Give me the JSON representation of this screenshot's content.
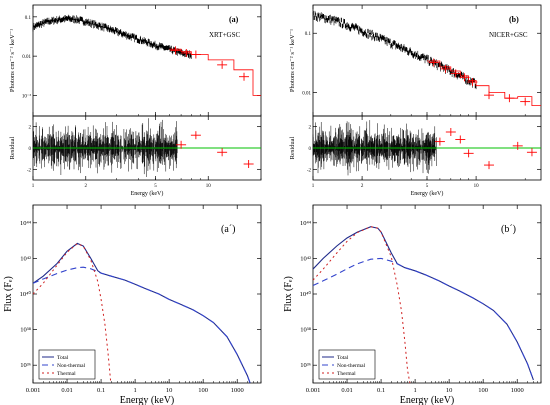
{
  "chart_data": [
    {
      "id": "a",
      "type": "line",
      "panel_label": "(a)",
      "instrument_label": "XRT+GSC",
      "log_x": true,
      "log_y": true,
      "xlim": [
        1,
        20
      ],
      "ylim": [
        0.0003,
        0.2
      ],
      "ylabel": "Photons cm⁻² s⁻¹ keV⁻¹",
      "xticks": [
        {
          "v": 1,
          "label": "1"
        },
        {
          "v": 2,
          "label": "2"
        },
        {
          "v": 5,
          "label": "5"
        },
        {
          "v": 10,
          "label": "10"
        }
      ],
      "yticks": [
        {
          "v": 0.1,
          "label": "0.1"
        },
        {
          "v": 0.01,
          "label": "0.01"
        },
        {
          "v": 0.001,
          "label": "10⁻³"
        }
      ],
      "series": [
        {
          "kind": "data",
          "color": "#000000",
          "x": [
            1.0,
            1.2,
            1.4,
            1.6,
            1.8,
            2.0,
            2.5,
            3.0,
            3.5,
            4.0,
            5.0,
            6.0,
            7.0,
            8.0
          ],
          "y": [
            0.055,
            0.075,
            0.085,
            0.09,
            0.085,
            0.075,
            0.056,
            0.042,
            0.033,
            0.027,
            0.019,
            0.015,
            0.012,
            0.011
          ]
        },
        {
          "kind": "data_extra",
          "color": "#ff0000",
          "x": [
            6.5,
            7.5,
            8.5,
            12,
            16
          ],
          "y": [
            0.014,
            0.012,
            0.011,
            0.006,
            0.003
          ]
        },
        {
          "kind": "model_step",
          "color": "#ff0000",
          "x": [
            6,
            7,
            8,
            10,
            14,
            18,
            20
          ],
          "y": [
            0.015,
            0.013,
            0.011,
            0.008,
            0.0045,
            0.001,
            0.0003
          ]
        }
      ]
    },
    {
      "id": "b",
      "type": "line",
      "panel_label": "(b)",
      "instrument_label": "NICER+GSC",
      "log_x": true,
      "log_y": true,
      "xlim": [
        1,
        25
      ],
      "ylim": [
        0.004,
        0.3
      ],
      "ylabel": "Photons cm⁻² s⁻¹ keV⁻¹",
      "xticks": [
        {
          "v": 1,
          "label": "1"
        },
        {
          "v": 2,
          "label": "2"
        },
        {
          "v": 5,
          "label": "5"
        },
        {
          "v": 10,
          "label": "10"
        }
      ],
      "yticks": [
        {
          "v": 0.1,
          "label": "0.1"
        },
        {
          "v": 0.01,
          "label": "0.01"
        }
      ],
      "series": [
        {
          "kind": "data",
          "color": "#000000",
          "x": [
            1.0,
            1.2,
            1.5,
            2.0,
            2.5,
            3.0,
            4.0,
            5.0,
            6.0,
            7.0,
            8.0,
            9.0,
            10.0
          ],
          "y": [
            0.2,
            0.18,
            0.15,
            0.11,
            0.085,
            0.068,
            0.048,
            0.036,
            0.028,
            0.023,
            0.019,
            0.016,
            0.014
          ]
        },
        {
          "kind": "data_extra",
          "color": "#ff0000",
          "x": [
            5.5,
            6.5,
            7.5,
            8.5,
            9.5,
            12,
            16,
            20
          ],
          "y": [
            0.032,
            0.025,
            0.021,
            0.018,
            0.015,
            0.009,
            0.008,
            0.007
          ]
        },
        {
          "kind": "model_step",
          "color": "#ff0000",
          "x": [
            5,
            6,
            7,
            8,
            9,
            10,
            12,
            15,
            18,
            22,
            25
          ],
          "y": [
            0.034,
            0.027,
            0.023,
            0.019,
            0.016,
            0.013,
            0.01,
            0.008,
            0.0085,
            0.006,
            0.005
          ]
        }
      ]
    },
    {
      "id": "a-residual",
      "type": "line",
      "log_x": true,
      "xlim": [
        1,
        20
      ],
      "ylim": [
        -3,
        3
      ],
      "ylabel": "Residual",
      "xlabel": "Energy (keV)",
      "xticks": [
        {
          "v": 1,
          "label": "1"
        },
        {
          "v": 2,
          "label": "2"
        },
        {
          "v": 5,
          "label": "5"
        },
        {
          "v": 10,
          "label": "10"
        }
      ],
      "yticks": [
        {
          "v": 2,
          "label": "2"
        },
        {
          "v": 0,
          "label": "0"
        },
        {
          "v": -2,
          "label": "-2"
        }
      ],
      "zero_line_color": "#00c000",
      "extra_points": {
        "color": "#ff0000",
        "x": [
          7,
          8.5,
          12,
          17
        ],
        "y": [
          0.3,
          1.2,
          -0.4,
          -1.5
        ]
      }
    },
    {
      "id": "b-residual",
      "type": "line",
      "log_x": true,
      "xlim": [
        1,
        25
      ],
      "ylim": [
        -3,
        3
      ],
      "ylabel": "Residual",
      "xlabel": "Energy (keV)",
      "xticks": [
        {
          "v": 1,
          "label": "1"
        },
        {
          "v": 2,
          "label": "2"
        },
        {
          "v": 5,
          "label": "5"
        },
        {
          "v": 10,
          "label": "10"
        }
      ],
      "yticks": [
        {
          "v": 2,
          "label": "2"
        },
        {
          "v": 0,
          "label": "0"
        },
        {
          "v": -2,
          "label": "-2"
        }
      ],
      "zero_line_color": "#00c000",
      "extra_points": {
        "color": "#ff0000",
        "x": [
          6,
          7,
          8,
          9,
          12,
          18,
          22
        ],
        "y": [
          0.6,
          1.5,
          0.8,
          -0.5,
          -1.6,
          0.2,
          -0.4
        ]
      }
    },
    {
      "id": "a-prime",
      "type": "line",
      "panel_label": "(a´)",
      "log_x": true,
      "log_y": true,
      "xlim": [
        0.001,
        5000
      ],
      "ylim": [
        1e+35,
        1e+45
      ],
      "xlabel": "Energy (keV)",
      "ylabel": "Flux (Fₑ)",
      "xticks": [
        {
          "v": 0.001,
          "label": "0.001"
        },
        {
          "v": 0.01,
          "label": "0.01"
        },
        {
          "v": 0.1,
          "label": "0.1"
        },
        {
          "v": 1,
          "label": "1"
        },
        {
          "v": 10,
          "label": "10"
        },
        {
          "v": 100,
          "label": "100"
        },
        {
          "v": 1000,
          "label": "1000"
        }
      ],
      "yticks": [
        {
          "v": 1e+36,
          "label": "10³⁶"
        },
        {
          "v": 1e+38,
          "label": "10³⁸"
        },
        {
          "v": 1e+40,
          "label": "10⁴⁰"
        },
        {
          "v": 1e+42,
          "label": "10⁴²"
        },
        {
          "v": 1e+44,
          "label": "10⁴⁴"
        }
      ],
      "legend": [
        "Total",
        "Non-thermal",
        "Thermal"
      ],
      "legend_position": "bottom-left",
      "series": [
        {
          "name": "Total",
          "color": "#1f2a8a",
          "dash": "",
          "x": [
            0.001,
            0.002,
            0.005,
            0.01,
            0.02,
            0.03,
            0.05,
            0.08,
            0.1,
            0.2,
            0.5,
            1,
            2,
            5,
            10,
            20,
            50,
            100,
            200,
            500,
            1000,
            2000,
            3000
          ],
          "y": [
            4e+40,
            1e+41,
            5e+41,
            2.5e+42,
            7e+42,
            5e+42,
            1e+42,
            2e+41,
            1.5e+41,
            1e+41,
            6e+40,
            3.5e+40,
            2e+40,
            1e+40,
            5e+39,
            2.8e+39,
            1.3e+39,
            6e+38,
            2.5e+38,
            4e+37,
            4e+36,
            2.5e+35,
            3e+34
          ]
        },
        {
          "name": "Non-thermal",
          "color": "#3344cc",
          "dash": "6,4",
          "x": [
            0.001,
            0.002,
            0.005,
            0.01,
            0.02,
            0.03,
            0.05,
            0.08,
            0.1,
            0.2,
            0.5,
            1,
            2,
            5,
            10,
            20,
            50,
            100,
            200,
            500,
            1000,
            2000,
            3000
          ],
          "y": [
            4e+40,
            7e+40,
            1.4e+41,
            2.2e+41,
            3e+41,
            3.2e+41,
            2.6e+41,
            1.8e+41,
            1.5e+41,
            1e+41,
            6e+40,
            3.5e+40,
            2e+40,
            1e+40,
            5e+39,
            2.8e+39,
            1.3e+39,
            6e+38,
            2.5e+38,
            4e+37,
            4e+36,
            2.5e+35,
            3e+34
          ]
        },
        {
          "name": "Thermal",
          "color": "#d02020",
          "dash": "2,3",
          "x": [
            0.001,
            0.002,
            0.005,
            0.01,
            0.02,
            0.03,
            0.05,
            0.08,
            0.1,
            0.13,
            0.16,
            0.2
          ],
          "y": [
            1e+40,
            4e+40,
            4e+41,
            2.2e+42,
            6.8e+42,
            4.8e+42,
            8e+41,
            5e+40,
            5e+39,
            2e+38,
            5e+36,
            5e+34
          ]
        }
      ]
    },
    {
      "id": "b-prime",
      "type": "line",
      "panel_label": "(b´)",
      "log_x": true,
      "log_y": true,
      "xlim": [
        0.001,
        5000
      ],
      "ylim": [
        1e+35,
        1e+45
      ],
      "xlabel": "Energy (keV)",
      "ylabel": "Flux (Fₑ)",
      "xticks": [
        {
          "v": 0.001,
          "label": "0.001"
        },
        {
          "v": 0.01,
          "label": "0.01"
        },
        {
          "v": 0.1,
          "label": "0.1"
        },
        {
          "v": 1,
          "label": "1"
        },
        {
          "v": 10,
          "label": "10"
        },
        {
          "v": 100,
          "label": "100"
        },
        {
          "v": 1000,
          "label": "1000"
        }
      ],
      "yticks": [
        {
          "v": 1e+36,
          "label": "10³⁶"
        },
        {
          "v": 1e+38,
          "label": "10³⁸"
        },
        {
          "v": 1e+40,
          "label": "10⁴⁰"
        },
        {
          "v": 1e+42,
          "label": "10⁴²"
        },
        {
          "v": 1e+44,
          "label": "10⁴⁴"
        }
      ],
      "legend": [
        "Total",
        "Non-thermal",
        "Thermal"
      ],
      "legend_position": "bottom-left",
      "series": [
        {
          "name": "Total",
          "color": "#1f2a8a",
          "dash": "",
          "x": [
            0.001,
            0.002,
            0.005,
            0.01,
            0.02,
            0.05,
            0.08,
            0.1,
            0.2,
            0.3,
            0.5,
            1,
            2,
            5,
            10,
            20,
            50,
            100,
            200,
            500,
            1000,
            2000,
            3000
          ],
          "y": [
            2.5e+41,
            1e+42,
            5e+42,
            1.4e+43,
            3e+43,
            6e+43,
            5e+43,
            3e+43,
            2e+42,
            5e+41,
            3e+41,
            2e+41,
            1.2e+41,
            5.5e+40,
            2.8e+40,
            1.5e+40,
            6e+39,
            2.8e+39,
            1.2e+39,
            2e+38,
            2e+37,
            1.2e+36,
            1.5e+35
          ]
        },
        {
          "name": "Non-thermal",
          "color": "#3344cc",
          "dash": "6,4",
          "x": [
            0.001,
            0.002,
            0.005,
            0.01,
            0.02,
            0.05,
            0.1,
            0.2,
            0.3,
            0.5,
            1,
            2,
            5,
            10,
            20,
            50,
            100,
            200,
            500,
            1000,
            2000,
            3000
          ],
          "y": [
            3e+40,
            5.5e+40,
            1.3e+41,
            2.6e+41,
            5e+41,
            9e+41,
            1e+42,
            7e+41,
            5e+41,
            3e+41,
            2e+41,
            1.2e+41,
            5.5e+40,
            2.8e+40,
            1.5e+40,
            6e+39,
            2.8e+39,
            1.2e+39,
            2e+38,
            2e+37,
            1.2e+36,
            1.5e+35
          ]
        },
        {
          "name": "Thermal",
          "color": "#d02020",
          "dash": "2,3",
          "x": [
            0.001,
            0.002,
            0.005,
            0.01,
            0.02,
            0.05,
            0.08,
            0.1,
            0.2,
            0.3,
            0.4,
            0.5,
            0.6,
            0.75
          ],
          "y": [
            6e+40,
            2.5e+41,
            2e+42,
            9e+42,
            2.8e+43,
            6e+43,
            5e+43,
            3e+43,
            1.2e+42,
            3e+40,
            1e+39,
            2e+37,
            5e+35,
            5e+34
          ]
        }
      ]
    }
  ]
}
